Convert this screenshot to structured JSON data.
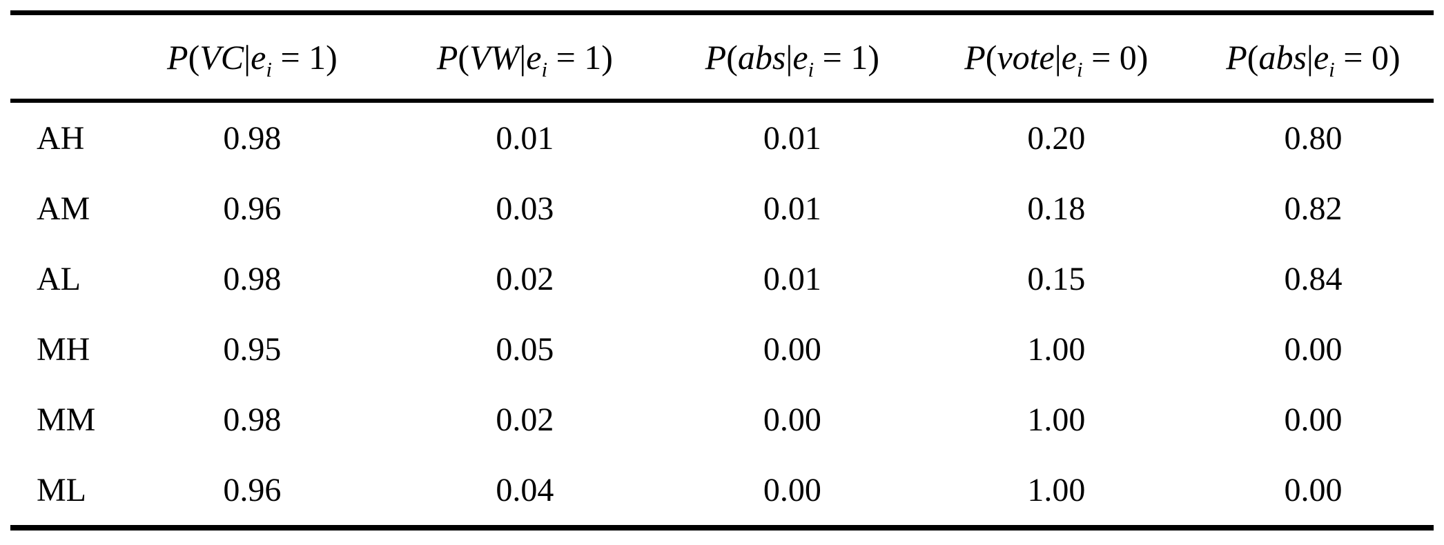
{
  "page": {
    "background_color": "#ffffff",
    "text_color": "#000000",
    "rule_color": "#000000"
  },
  "table": {
    "row_header_column": {
      "id": "condition",
      "label": ""
    },
    "columns": [
      {
        "id": "p-vc-given-e1",
        "label": "P(VC|e_i = 1)",
        "parts": [
          {
            "text": "P",
            "style": "italic"
          },
          {
            "text": "(",
            "style": "upright"
          },
          {
            "text": "VC",
            "style": "italic"
          },
          {
            "text": "|",
            "style": "upright"
          },
          {
            "text": "e",
            "style": "italic"
          },
          {
            "text": "i",
            "style": "subscript"
          },
          {
            "text": " = 1)",
            "style": "upright"
          }
        ]
      },
      {
        "id": "p-vw-given-e1",
        "label": "P(VW|e_i = 1)",
        "parts": [
          {
            "text": "P",
            "style": "italic"
          },
          {
            "text": "(",
            "style": "upright"
          },
          {
            "text": "VW",
            "style": "italic"
          },
          {
            "text": "|",
            "style": "upright"
          },
          {
            "text": "e",
            "style": "italic"
          },
          {
            "text": "i",
            "style": "subscript"
          },
          {
            "text": " = 1)",
            "style": "upright"
          }
        ]
      },
      {
        "id": "p-abs-given-e1",
        "label": "P(abs|e_i = 1)",
        "parts": [
          {
            "text": "P",
            "style": "italic"
          },
          {
            "text": "(",
            "style": "upright"
          },
          {
            "text": "abs",
            "style": "italic"
          },
          {
            "text": "|",
            "style": "upright"
          },
          {
            "text": "e",
            "style": "italic"
          },
          {
            "text": "i",
            "style": "subscript"
          },
          {
            "text": " = 1)",
            "style": "upright"
          }
        ]
      },
      {
        "id": "p-vote-given-e0",
        "label": "P(vote|e_i = 0)",
        "parts": [
          {
            "text": "P",
            "style": "italic"
          },
          {
            "text": "(",
            "style": "upright"
          },
          {
            "text": "vote",
            "style": "italic"
          },
          {
            "text": "|",
            "style": "upright"
          },
          {
            "text": "e",
            "style": "italic"
          },
          {
            "text": "i",
            "style": "subscript"
          },
          {
            "text": " = 0)",
            "style": "upright"
          }
        ]
      },
      {
        "id": "p-abs-given-e0",
        "label": "P(abs|e_i = 0)",
        "parts": [
          {
            "text": "P",
            "style": "italic"
          },
          {
            "text": "(",
            "style": "upright"
          },
          {
            "text": "abs",
            "style": "italic"
          },
          {
            "text": "|",
            "style": "upright"
          },
          {
            "text": "e",
            "style": "italic"
          },
          {
            "text": "i",
            "style": "subscript"
          },
          {
            "text": " = 0)",
            "style": "upright"
          }
        ]
      }
    ],
    "rows": [
      {
        "label": "AH",
        "values": [
          "0.98",
          "0.01",
          "0.01",
          "0.20",
          "0.80"
        ]
      },
      {
        "label": "AM",
        "values": [
          "0.96",
          "0.03",
          "0.01",
          "0.18",
          "0.82"
        ]
      },
      {
        "label": "AL",
        "values": [
          "0.98",
          "0.02",
          "0.01",
          "0.15",
          "0.84"
        ]
      },
      {
        "label": "MH",
        "values": [
          "0.95",
          "0.05",
          "0.00",
          "1.00",
          "0.00"
        ]
      },
      {
        "label": "MM",
        "values": [
          "0.98",
          "0.02",
          "0.00",
          "1.00",
          "0.00"
        ]
      },
      {
        "label": "ML",
        "values": [
          "0.96",
          "0.04",
          "0.00",
          "1.00",
          "0.00"
        ]
      }
    ]
  }
}
